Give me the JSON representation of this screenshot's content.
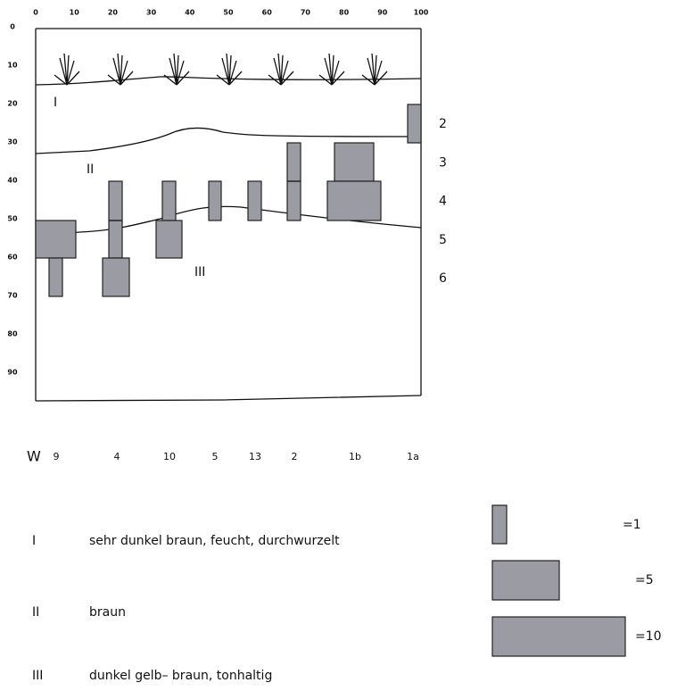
{
  "top_axis": [
    0,
    10,
    20,
    30,
    40,
    50,
    60,
    70,
    80,
    90,
    100
  ],
  "left_axis": [
    0,
    10,
    20,
    30,
    40,
    50,
    60,
    70,
    80,
    90
  ],
  "right_labels": [
    2,
    3,
    4,
    5,
    6
  ],
  "horizons": [
    "I",
    "II",
    "III"
  ],
  "w_label": "W",
  "samples": [
    "9",
    "4",
    "10",
    "5",
    "13",
    "2",
    "1b",
    "1a"
  ],
  "legend": [
    "=1",
    "=5",
    "=10"
  ],
  "descriptions": [
    {
      "symbol": "I",
      "text": "sehr dunkel braun, feucht, durchwurzelt"
    },
    {
      "symbol": "II",
      "text": "braun"
    },
    {
      "symbol": "III",
      "text": "dunkel gelb– braun, tonhaltig"
    }
  ]
}
